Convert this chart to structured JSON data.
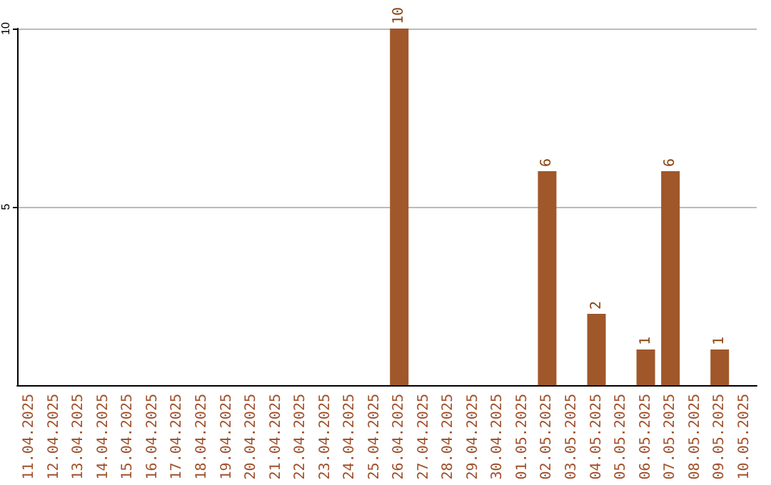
{
  "chart_data": {
    "type": "bar",
    "categories": [
      "11.04.2025",
      "12.04.2025",
      "13.04.2025",
      "14.04.2025",
      "15.04.2025",
      "16.04.2025",
      "17.04.2025",
      "18.04.2025",
      "19.04.2025",
      "20.04.2025",
      "21.04.2025",
      "22.04.2025",
      "23.04.2025",
      "24.04.2025",
      "25.04.2025",
      "26.04.2025",
      "27.04.2025",
      "28.04.2025",
      "29.04.2025",
      "30.04.2025",
      "01.05.2025",
      "02.05.2025",
      "03.05.2025",
      "04.05.2025",
      "05.05.2025",
      "06.05.2025",
      "07.05.2025",
      "08.05.2025",
      "09.05.2025",
      "10.05.2025"
    ],
    "values": [
      0,
      0,
      0,
      0,
      0,
      0,
      0,
      0,
      0,
      0,
      0,
      0,
      0,
      0,
      0,
      10,
      0,
      0,
      0,
      0,
      0,
      6,
      0,
      2,
      0,
      1,
      6,
      0,
      1,
      0
    ],
    "value_labels": [
      null,
      null,
      null,
      null,
      null,
      null,
      null,
      null,
      null,
      null,
      null,
      null,
      null,
      null,
      null,
      "10",
      null,
      null,
      null,
      null,
      null,
      "6",
      null,
      "2",
      null,
      "1",
      "6",
      null,
      "1",
      null
    ],
    "color": "#a0572a",
    "ylim": [
      0,
      10
    ],
    "yticks": [
      5,
      10
    ],
    "grid": "y"
  }
}
